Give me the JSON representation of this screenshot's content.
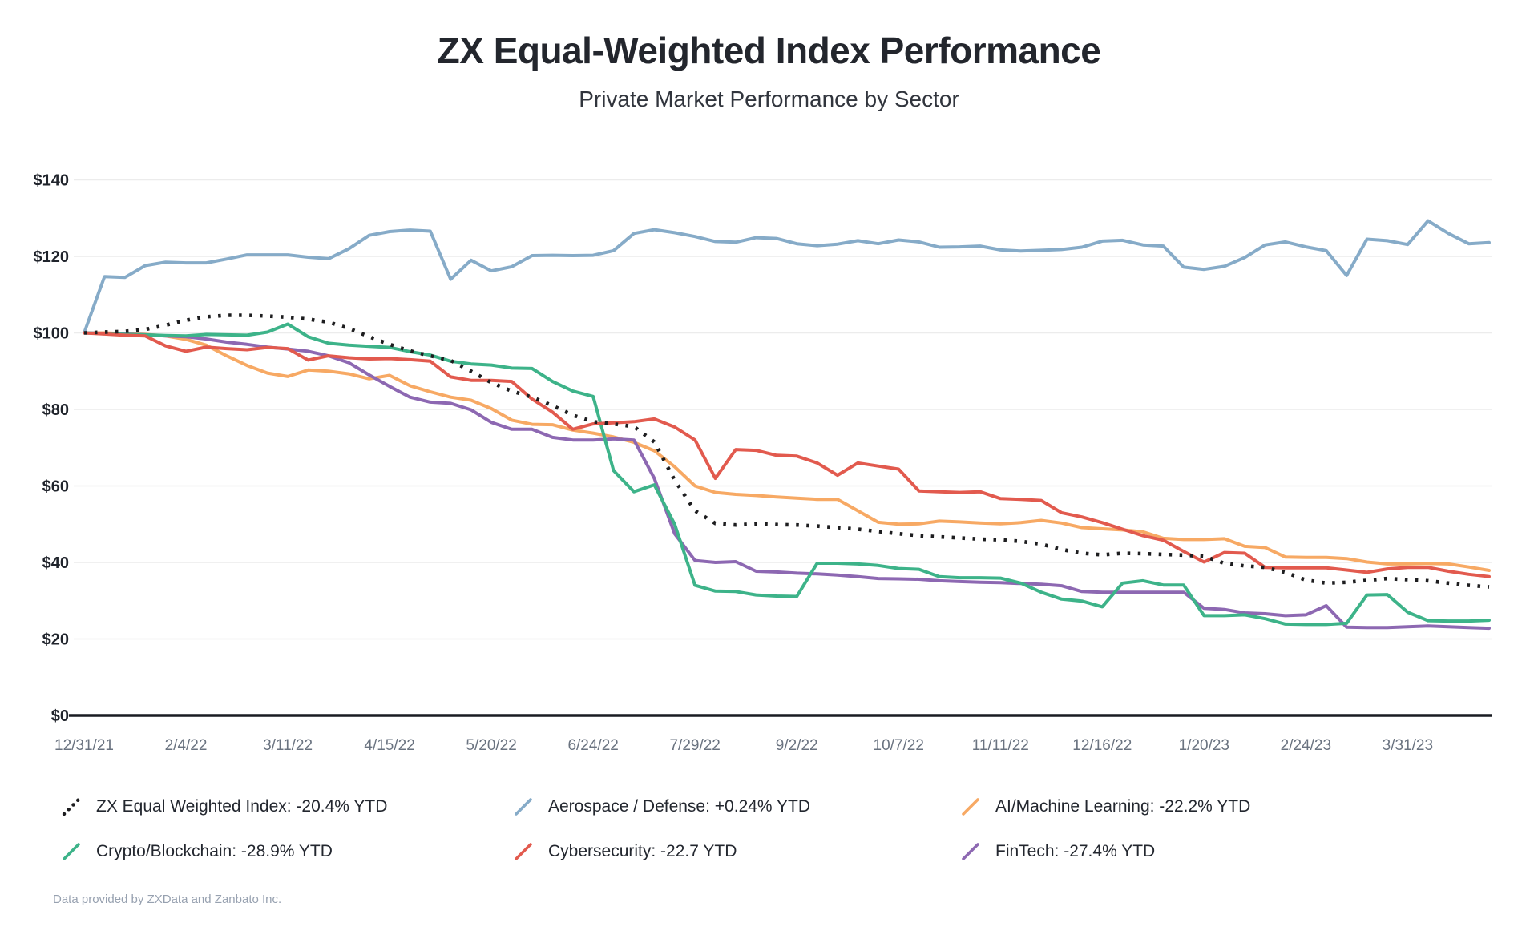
{
  "page": {
    "title": "ZX Equal-Weighted Index Performance",
    "subtitle": "Private Market Performance by Sector",
    "footer": "Data provided by ZXData and Zanbato Inc."
  },
  "chart_data": {
    "type": "line",
    "title": "ZX Equal-Weighted Index Performance",
    "subtitle": "Private Market Performance by Sector",
    "x_unit": "weekly observations, 12/31/21 through 4/28/23",
    "grid": true,
    "legend_position": "bottom",
    "ylim": [
      0,
      140
    ],
    "y_ticks": [
      0,
      20,
      40,
      60,
      80,
      100,
      120,
      140
    ],
    "y_tick_labels": [
      "$0",
      "$20",
      "$40",
      "$60",
      "$80",
      "$100",
      "$120",
      "$140"
    ],
    "x_tick_weeks": [
      0,
      5,
      10,
      15,
      20,
      25,
      30,
      35,
      40,
      45,
      50,
      55,
      60,
      65
    ],
    "x_tick_labels": [
      "12/31/21",
      "2/4/22",
      "3/11/22",
      "4/15/22",
      "5/20/22",
      "6/24/22",
      "7/29/22",
      "9/2/22",
      "10/7/22",
      "11/11/22",
      "12/16/22",
      "1/20/23",
      "2/24/23",
      "3/31/23"
    ],
    "series": [
      {
        "id": "zx-index",
        "name": "ZX Equal Weighted Index",
        "legend_label": "ZX Equal Weighted Index: -20.4% YTD",
        "ytd": "-20.4%",
        "color": "#1d1d1f",
        "style": "dotted",
        "draw_order": 6,
        "values": [
          100,
          100.2,
          100.4,
          100.9,
          102.0,
          103.3,
          104.2,
          104.6,
          104.6,
          104.4,
          104.1,
          103.6,
          102.8,
          101.2,
          99.0,
          97.0,
          95.3,
          94.0,
          92.8,
          90.0,
          87.0,
          84.8,
          83.2,
          81.0,
          78.5,
          76.8,
          76.2,
          75.5,
          71.5,
          61.5,
          53.5,
          50.2,
          49.8,
          50.1,
          49.9,
          49.8,
          49.5,
          49.1,
          48.7,
          48.1,
          47.5,
          47.0,
          46.7,
          46.4,
          46.1,
          45.9,
          45.5,
          44.8,
          43.4,
          42.4,
          42.0,
          42.4,
          42.3,
          42.1,
          41.9,
          41.6,
          39.8,
          39.1,
          38.7,
          37.4,
          35.4,
          34.6,
          34.8,
          35.3,
          35.8,
          35.5,
          35.2,
          34.6,
          34.0,
          33.6
        ]
      },
      {
        "id": "aerospace-defense",
        "name": "Aerospace / Defense",
        "legend_label": "Aerospace / Defense: +0.24% YTD",
        "ytd": "+0.24%",
        "color": "#86abc8",
        "style": "solid",
        "draw_order": 1,
        "values": [
          100,
          114.7,
          114.5,
          117.6,
          118.5,
          118.3,
          118.3,
          119.3,
          120.4,
          120.4,
          120.4,
          119.8,
          119.4,
          122.0,
          125.5,
          126.5,
          126.9,
          126.6,
          114.0,
          119.0,
          116.2,
          117.3,
          120.2,
          120.3,
          120.2,
          120.3,
          121.5,
          126.0,
          127.0,
          126.2,
          125.2,
          123.9,
          123.7,
          124.9,
          124.7,
          123.3,
          122.8,
          123.2,
          124.1,
          123.3,
          124.3,
          123.8,
          122.4,
          122.5,
          122.7,
          121.7,
          121.4,
          121.6,
          121.8,
          122.4,
          124.0,
          124.2,
          123.0,
          122.7,
          117.2,
          116.6,
          117.4,
          119.7,
          123.0,
          123.8,
          122.5,
          121.5,
          115.0,
          124.5,
          124.1,
          123.1,
          129.3,
          126.0,
          123.3,
          123.6
        ]
      },
      {
        "id": "ai-machine-learning",
        "name": "AI/Machine Learning",
        "legend_label": "AI/Machine Learning: -22.2% YTD",
        "ytd": "-22.2%",
        "color": "#f7a964",
        "style": "solid",
        "draw_order": 2,
        "values": [
          100,
          100.0,
          99.8,
          99.6,
          99.2,
          98.3,
          96.8,
          94.0,
          91.5,
          89.5,
          88.6,
          90.3,
          90.0,
          89.3,
          88.0,
          88.9,
          86.2,
          84.6,
          83.2,
          82.4,
          80.2,
          77.2,
          76.1,
          76.0,
          74.6,
          73.8,
          72.8,
          71.4,
          69.2,
          65.0,
          60.0,
          58.3,
          57.8,
          57.5,
          57.1,
          56.8,
          56.5,
          56.5,
          53.5,
          50.5,
          50.0,
          50.1,
          50.8,
          50.6,
          50.3,
          50.1,
          50.4,
          51.0,
          50.3,
          49.1,
          48.8,
          48.5,
          48.0,
          46.3,
          46.0,
          46.0,
          46.2,
          44.2,
          43.9,
          41.4,
          41.3,
          41.3,
          41.0,
          40.1,
          39.6,
          39.6,
          39.7,
          39.6,
          38.8,
          37.9
        ]
      },
      {
        "id": "crypto-blockchain",
        "name": "Crypto/Blockchain",
        "legend_label": "Crypto/Blockchain: -28.9% YTD",
        "ytd": "-28.9%",
        "color": "#3db389",
        "style": "solid",
        "draw_order": 4,
        "values": [
          100,
          99.8,
          99.6,
          99.5,
          99.3,
          99.2,
          99.6,
          99.5,
          99.4,
          100.2,
          102.3,
          99.0,
          97.3,
          96.8,
          96.5,
          96.2,
          95.1,
          94.2,
          92.6,
          91.9,
          91.6,
          90.8,
          90.7,
          87.3,
          84.8,
          83.4,
          64.0,
          58.5,
          60.3,
          50.0,
          34.0,
          32.5,
          32.4,
          31.5,
          31.2,
          31.1,
          39.8,
          39.8,
          39.6,
          39.2,
          38.4,
          38.2,
          36.3,
          36.0,
          36.0,
          35.9,
          34.6,
          32.2,
          30.4,
          29.9,
          28.4,
          34.6,
          35.2,
          34.1,
          34.1,
          26.1,
          26.1,
          26.3,
          25.3,
          23.9,
          23.8,
          23.8,
          24.1,
          31.5,
          31.6,
          27.0,
          24.8,
          24.7,
          24.7,
          24.9
        ]
      },
      {
        "id": "cybersecurity",
        "name": "Cybersecurity",
        "legend_label": "Cybersecurity: -22.7 YTD",
        "ytd": "-22.7",
        "color": "#e25a4e",
        "style": "solid",
        "draw_order": 5,
        "values": [
          100,
          99.7,
          99.4,
          99.2,
          96.6,
          95.2,
          96.3,
          95.9,
          95.6,
          96.2,
          95.9,
          92.9,
          94.0,
          93.5,
          93.2,
          93.3,
          93.0,
          92.6,
          88.5,
          87.6,
          87.6,
          87.3,
          82.7,
          79.3,
          74.8,
          76.2,
          76.5,
          76.8,
          77.5,
          75.4,
          72.0,
          62.0,
          69.5,
          69.3,
          68.0,
          67.8,
          66.0,
          62.8,
          66.0,
          65.2,
          64.4,
          58.7,
          58.5,
          58.3,
          58.5,
          56.7,
          56.5,
          56.2,
          53.0,
          51.9,
          50.4,
          48.7,
          47.0,
          45.8,
          42.9,
          40.1,
          42.6,
          42.4,
          38.7,
          38.6,
          38.6,
          38.6,
          38.0,
          37.4,
          38.3,
          38.7,
          38.7,
          37.7,
          36.9,
          36.3
        ]
      },
      {
        "id": "fintech",
        "name": "FinTech",
        "legend_label": "FinTech: -27.4% YTD",
        "ytd": "-27.4%",
        "color": "#8d68b2",
        "style": "solid",
        "draw_order": 3,
        "values": [
          100,
          99.9,
          99.7,
          99.5,
          99.2,
          99.0,
          98.4,
          97.6,
          97.0,
          96.3,
          95.8,
          95.2,
          94.0,
          92.2,
          89.0,
          86.0,
          83.2,
          81.9,
          81.6,
          79.9,
          76.6,
          74.8,
          74.8,
          72.7,
          72.0,
          72.0,
          72.3,
          72.0,
          62.0,
          47.5,
          40.5,
          40.0,
          40.2,
          37.7,
          37.5,
          37.2,
          37.0,
          36.7,
          36.3,
          35.8,
          35.7,
          35.6,
          35.2,
          35.0,
          34.8,
          34.7,
          34.5,
          34.3,
          33.9,
          32.4,
          32.2,
          32.2,
          32.2,
          32.2,
          32.2,
          28.0,
          27.7,
          26.8,
          26.6,
          26.1,
          26.3,
          28.7,
          23.1,
          23.0,
          23.0,
          23.2,
          23.4,
          23.2,
          23.0,
          22.8
        ]
      }
    ],
    "colors": {
      "grid": "#ececec",
      "axis": "#191c22",
      "x_tick_text": "#6a7380",
      "y_tick_text": "#20242c",
      "title_text": "#23262d",
      "footer_text": "#97a1b0"
    }
  }
}
